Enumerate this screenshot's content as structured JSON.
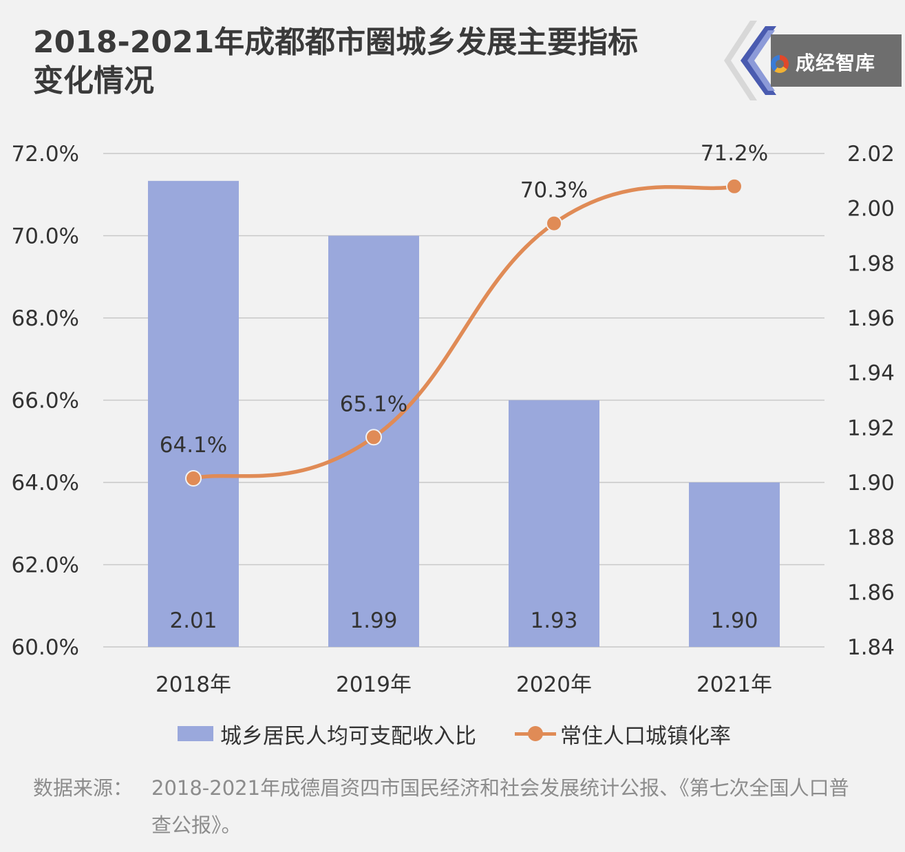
{
  "title_line1": "2018-2021年成都都市圈城乡发展主要指标",
  "title_line2": "变化情况",
  "logo_text": "成经智库",
  "source_label": "数据来源：",
  "source_text": "2018-2021年成德眉资四市国民经济和社会发展统计公报、《第七次全国人口普查公报》。",
  "colors": {
    "bar": "#9aa8dc",
    "line": "#e08b56",
    "grid": "#c8c8c8",
    "text": "#333333"
  },
  "chart_data": {
    "type": "bar+line",
    "categories": [
      "2018年",
      "2019年",
      "2020年",
      "2021年"
    ],
    "series": [
      {
        "name": "城乡居民人均可支配收入比",
        "type": "bar",
        "axis": "right",
        "values": [
          2.01,
          1.99,
          1.93,
          1.9
        ],
        "labels": [
          "2.01",
          "1.99",
          "1.93",
          "1.90"
        ]
      },
      {
        "name": "常住人口城镇化率",
        "type": "line",
        "axis": "left",
        "values": [
          64.1,
          65.1,
          70.3,
          71.2
        ],
        "labels": [
          "64.1%",
          "65.1%",
          "70.3%",
          "71.2%"
        ]
      }
    ],
    "y_left": {
      "min": 60,
      "max": 72,
      "ticks": [
        "60.0%",
        "62.0%",
        "64.0%",
        "66.0%",
        "68.0%",
        "70.0%",
        "72.0%"
      ]
    },
    "y_right": {
      "min": 1.84,
      "max": 2.02,
      "ticks": [
        "1.84",
        "1.86",
        "1.88",
        "1.90",
        "1.92",
        "1.94",
        "1.96",
        "1.98",
        "2.00",
        "2.02"
      ]
    },
    "grid": true,
    "legend_position": "bottom"
  }
}
